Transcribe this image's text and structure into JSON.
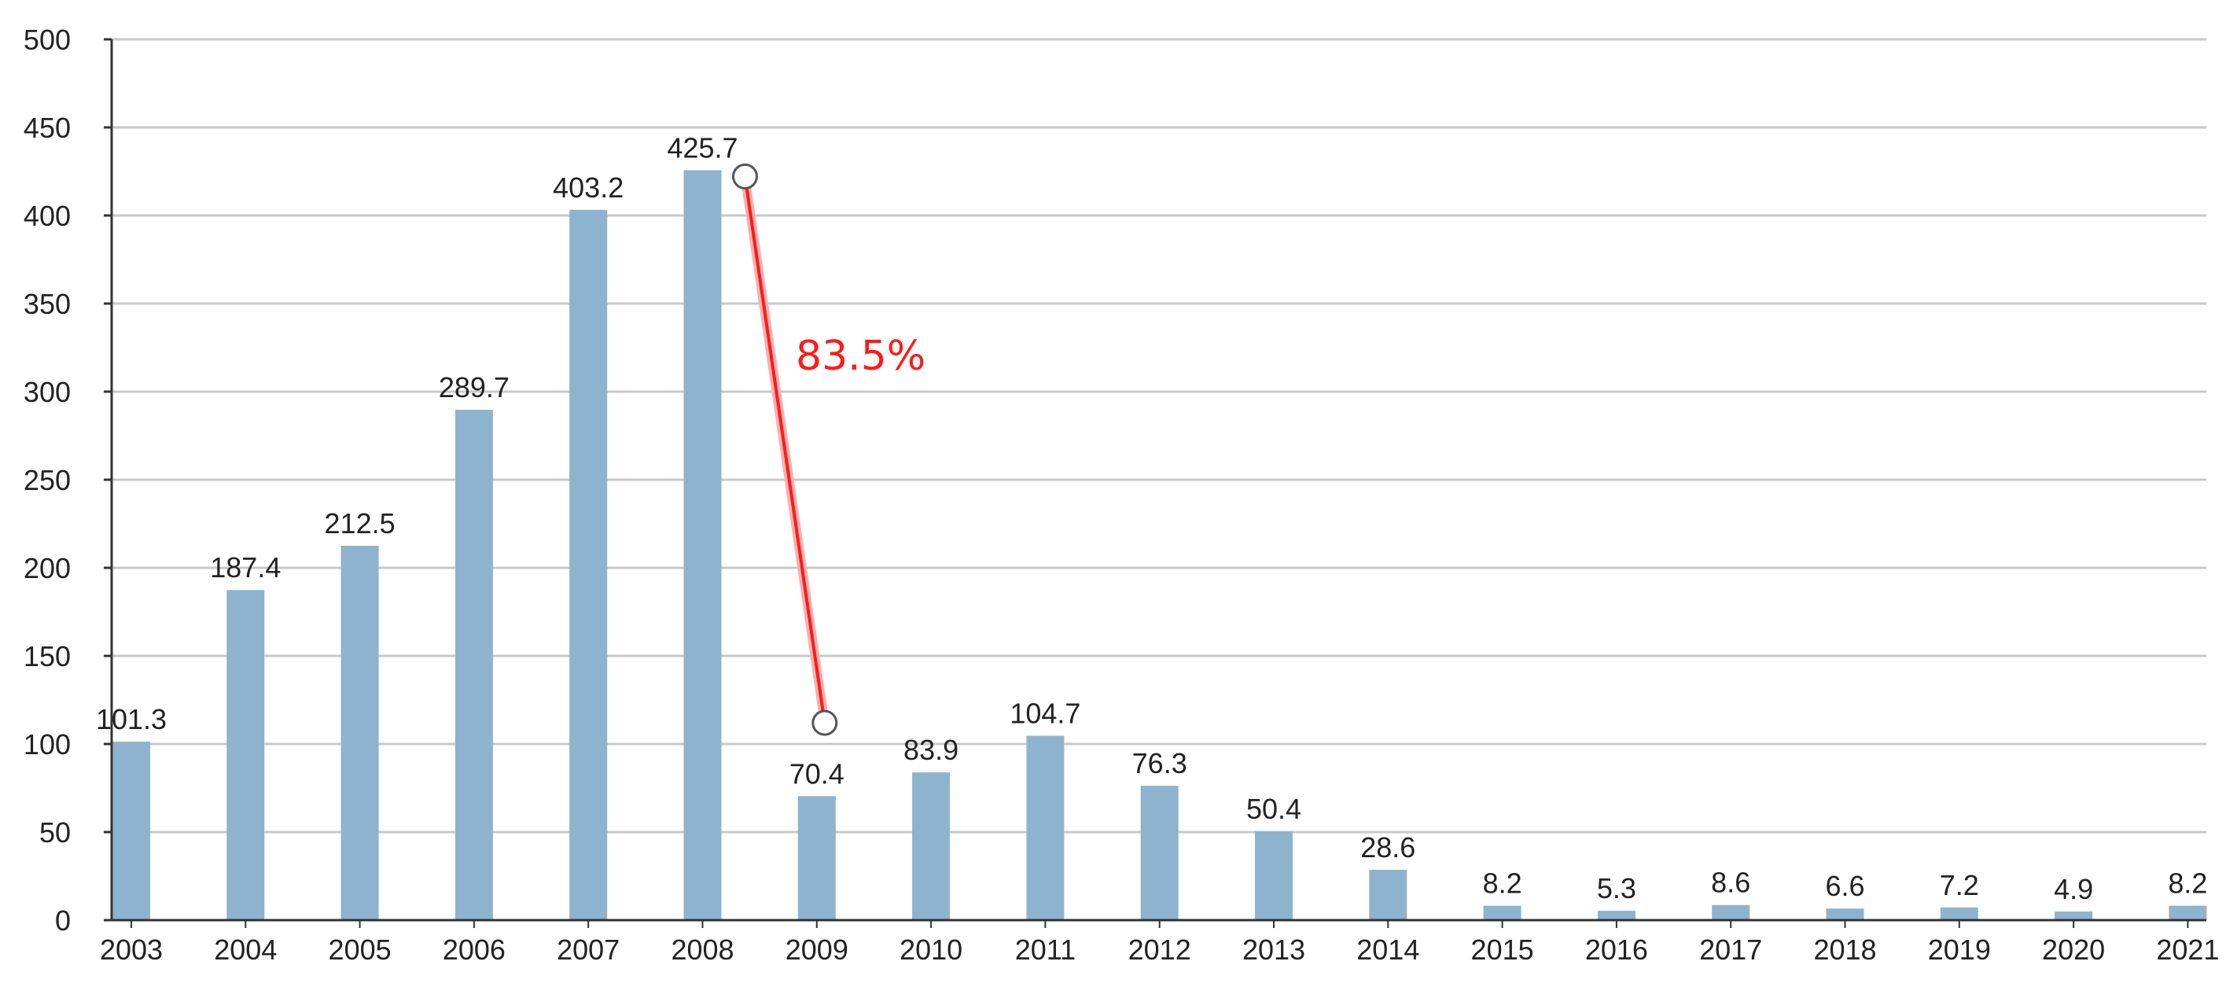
{
  "chart_data": {
    "type": "bar",
    "categories": [
      "2003",
      "2004",
      "2005",
      "2006",
      "2007",
      "2008",
      "2009",
      "2010",
      "2011",
      "2012",
      "2013",
      "2014",
      "2015",
      "2016",
      "2017",
      "2018",
      "2019",
      "2020",
      "2021"
    ],
    "values": [
      101.3,
      187.4,
      212.5,
      289.7,
      403.2,
      425.7,
      70.4,
      83.9,
      104.7,
      76.3,
      50.4,
      28.6,
      8.2,
      5.3,
      8.6,
      6.6,
      7.2,
      4.9,
      8.2
    ],
    "data_labels": [
      "101.3",
      "187.4",
      "212.5",
      "289.7",
      "403.2",
      "425.7",
      "70.4",
      "83.9",
      "104.7",
      "76.3",
      "50.4",
      "28.6",
      "8.2",
      "5.3",
      "8.6",
      "6.6",
      "7.2",
      "4.9",
      "8.2"
    ],
    "title": "",
    "xlabel": "",
    "ylabel": "",
    "ylim": [
      0,
      500
    ],
    "yticks": [
      "0",
      "50",
      "100",
      "150",
      "200",
      "250",
      "300",
      "350",
      "400",
      "450",
      "500"
    ],
    "grid": true,
    "legend": "none",
    "colors": {
      "bar": "#8eb3cf",
      "grid": "#c8c8c8",
      "axis": "#333333",
      "annotation": "#ff1a1a"
    },
    "annotations": [
      {
        "text": "83.5%",
        "from_category": "2008",
        "from_value": 425.7,
        "to_category": "2009",
        "to_value": 112
      }
    ]
  }
}
